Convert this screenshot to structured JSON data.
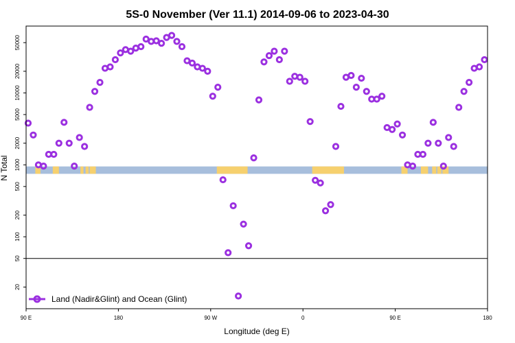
{
  "chart_data": {
    "type": "scatter",
    "title": "5S-0 November (Ver 11.1)   2014-09-06 to 2023-04-30",
    "xlabel": "Longitude (deg E)",
    "ylabel": "N Total",
    "y_scale": "log",
    "x_ticks": [
      {
        "x": 90,
        "label": "90 E"
      },
      {
        "x": 180,
        "label": "180"
      },
      {
        "x": 270,
        "label": "90 W"
      },
      {
        "x": 360,
        "label": "0"
      },
      {
        "x": 450,
        "label": "90 E"
      },
      {
        "x": 540,
        "label": "180"
      }
    ],
    "xlim": [
      90,
      540
    ],
    "y_ticks": [
      {
        "y": 20,
        "label": "20"
      },
      {
        "y": 50,
        "label": "50"
      },
      {
        "y": 100,
        "label": "100"
      },
      {
        "y": 200,
        "label": "200"
      },
      {
        "y": 500,
        "label": "500"
      },
      {
        "y": 1000,
        "label": "1000"
      },
      {
        "y": 2000,
        "label": "2000"
      },
      {
        "y": 5000,
        "label": "5000"
      },
      {
        "y": 10000,
        "label": "10000"
      },
      {
        "y": 20000,
        "label": "20000"
      },
      {
        "y": 50000,
        "label": "50000"
      }
    ],
    "ylim": [
      10,
      85000
    ],
    "reference_line_y": 50,
    "land_strip_y": [
      750,
      950
    ],
    "colors": {
      "marker": "#9b30e0",
      "ocean": "#a7bedc",
      "land": "#f6d06e"
    },
    "land_segments": [
      [
        99,
        104
      ],
      [
        116,
        122
      ],
      [
        143,
        146
      ],
      [
        148,
        151
      ],
      [
        152,
        158
      ],
      [
        276,
        306
      ],
      [
        369,
        400
      ],
      [
        456,
        462
      ],
      [
        475,
        482
      ],
      [
        486,
        490
      ],
      [
        491,
        495
      ],
      [
        496,
        502
      ]
    ],
    "series": [
      {
        "name": "Land (Nadir&Glint) and Ocean (Glint)",
        "x": [
          92,
          97,
          102,
          107,
          112,
          117,
          122,
          127,
          132,
          137,
          142,
          147,
          152,
          157,
          162,
          167,
          172,
          177,
          182,
          187,
          192,
          197,
          202,
          207,
          212,
          217,
          222,
          227,
          232,
          237,
          242,
          247,
          252,
          257,
          262,
          267,
          272,
          277,
          282,
          287,
          292,
          297,
          302,
          307,
          312,
          317,
          322,
          327,
          332,
          337,
          342,
          347,
          352,
          357,
          362,
          367,
          372,
          377,
          382,
          387,
          392,
          397,
          402,
          407,
          412,
          417,
          422,
          427,
          432,
          437,
          442,
          447,
          452,
          457,
          462,
          467,
          472,
          477,
          482,
          487,
          492,
          497,
          502,
          507,
          512,
          517,
          522,
          527,
          532,
          537
        ],
        "y": [
          3800,
          2600,
          1000,
          960,
          1400,
          1400,
          2000,
          3900,
          2000,
          960,
          2400,
          1800,
          6300,
          10500,
          14000,
          22000,
          23000,
          29000,
          36000,
          40000,
          38000,
          42000,
          44000,
          56000,
          52000,
          53000,
          49000,
          59000,
          63000,
          52000,
          44000,
          28000,
          26000,
          23000,
          22000,
          20000,
          9000,
          12000,
          620,
          60,
          270,
          15,
          150,
          75,
          1250,
          8000,
          27000,
          33000,
          38000,
          29000,
          38000,
          14500,
          17000,
          16500,
          14500,
          4000,
          610,
          560,
          230,
          280,
          1800,
          6500,
          16500,
          17500,
          12000,
          16000,
          10500,
          8200,
          8200,
          9000,
          3300,
          3100,
          3700,
          2600,
          1000,
          960,
          1400,
          1400,
          2000,
          3900,
          2000,
          960,
          2400,
          1800,
          6300,
          10500,
          14000,
          22000,
          23000,
          29000
        ]
      }
    ],
    "legend": {
      "position": "bottom-left",
      "label": "Land (Nadir&Glint) and Ocean (Glint)"
    }
  }
}
